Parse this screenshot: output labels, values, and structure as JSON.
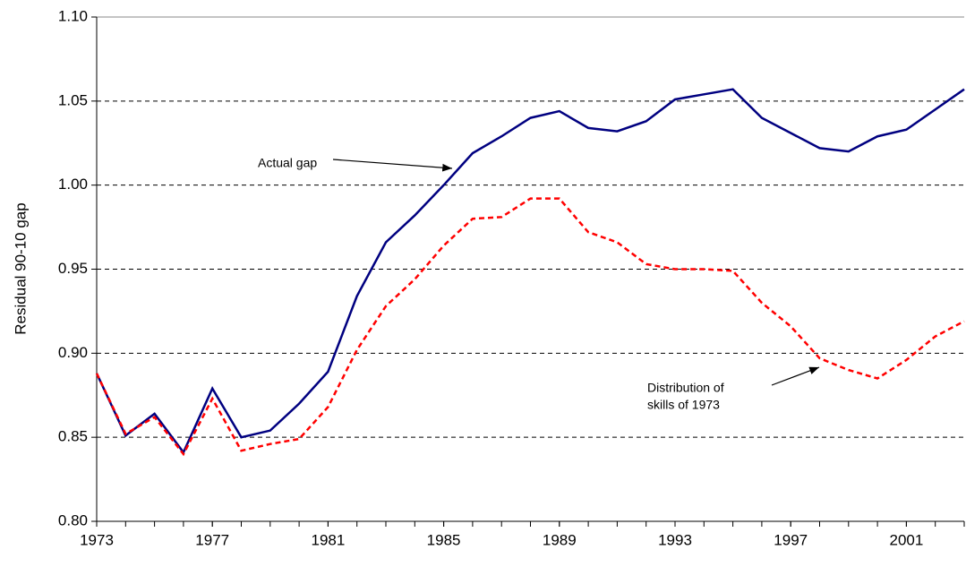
{
  "chart_data": {
    "type": "line",
    "y_label": "Residual 90-10 gap",
    "x": [
      1973,
      1974,
      1975,
      1976,
      1977,
      1978,
      1979,
      1980,
      1981,
      1982,
      1983,
      1984,
      1985,
      1986,
      1987,
      1988,
      1989,
      1990,
      1991,
      1992,
      1993,
      1994,
      1995,
      1996,
      1997,
      1998,
      1999,
      2000,
      2001,
      2002,
      2003
    ],
    "series": [
      {
        "name": "Actual gap",
        "color": "#000080",
        "dash": "solid",
        "values": [
          0.888,
          0.851,
          0.864,
          0.841,
          0.879,
          0.85,
          0.854,
          0.87,
          0.889,
          0.934,
          0.966,
          0.982,
          1.0,
          1.019,
          1.029,
          1.04,
          1.044,
          1.034,
          1.032,
          1.038,
          1.051,
          1.054,
          1.057,
          1.04,
          1.031,
          1.022,
          1.02,
          1.029,
          1.033,
          1.045,
          1.057
        ]
      },
      {
        "name": "Distribution of skills of 1973",
        "color": "#ff0000",
        "dash": "dashed",
        "values": [
          0.888,
          0.852,
          0.862,
          0.84,
          0.873,
          0.842,
          0.846,
          0.849,
          0.868,
          0.902,
          0.928,
          0.944,
          0.964,
          0.98,
          0.981,
          0.992,
          0.992,
          0.972,
          0.966,
          0.953,
          0.95,
          0.95,
          0.949,
          0.93,
          0.916,
          0.897,
          0.89,
          0.885,
          0.896,
          0.91,
          0.919
        ]
      }
    ],
    "annotations": [
      {
        "lines": [
          "Actual gap"
        ]
      },
      {
        "lines": [
          "Distribution of",
          "skills of 1973"
        ]
      }
    ],
    "xlim": [
      1973,
      2003
    ],
    "xticks": [
      1973,
      1977,
      1981,
      1985,
      1989,
      1993,
      1997,
      2001
    ],
    "ylim": [
      0.8,
      1.1
    ],
    "yticks": [
      {
        "value": 0.8,
        "label": "0.80"
      },
      {
        "value": 0.85,
        "label": "0.85"
      },
      {
        "value": 0.9,
        "label": "0.90"
      },
      {
        "value": 0.95,
        "label": "0.95"
      },
      {
        "value": 1.0,
        "label": "1.00"
      },
      {
        "value": 1.05,
        "label": "1.05"
      },
      {
        "value": 1.1,
        "label": "1.10"
      }
    ],
    "grid": true
  }
}
